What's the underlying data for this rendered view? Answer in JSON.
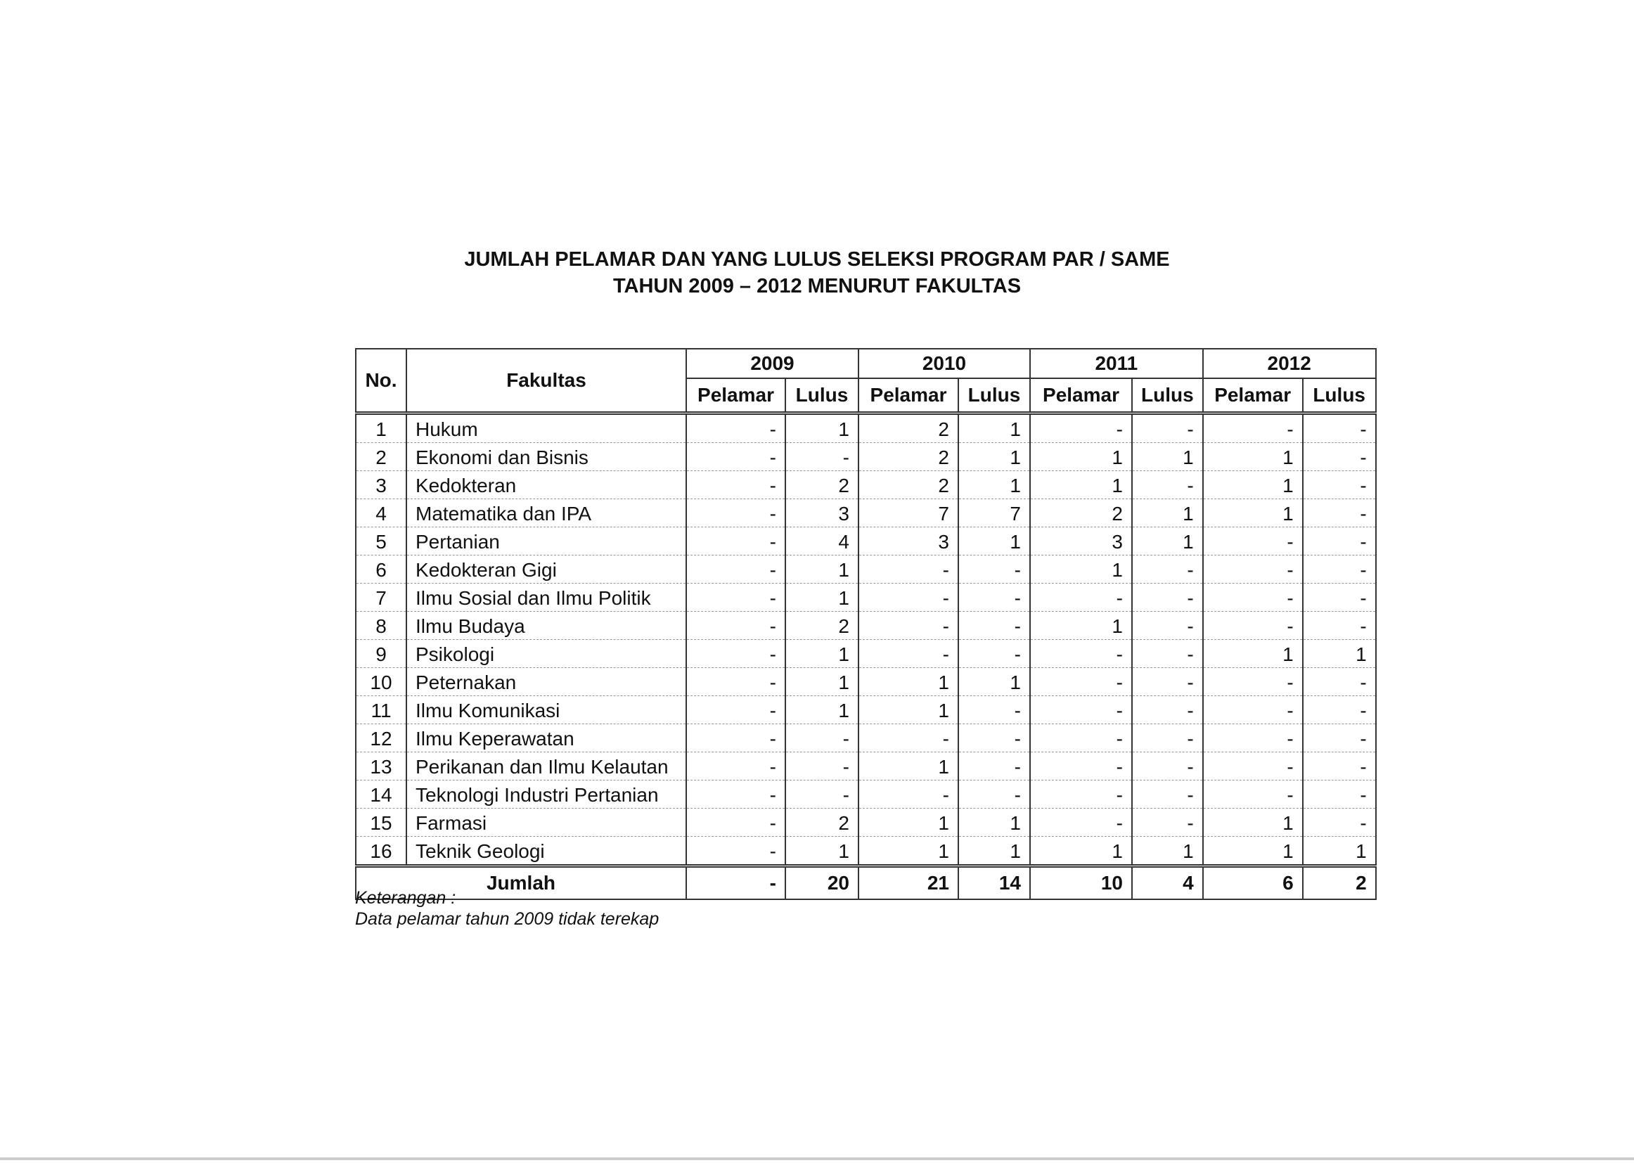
{
  "title": {
    "line1": "JUMLAH PELAMAR DAN YANG LULUS SELEKSI PROGRAM PAR / SAME",
    "line2": "TAHUN 2009 – 2012 MENURUT FAKULTAS"
  },
  "table": {
    "col_no": "No.",
    "col_fakultas": "Fakultas",
    "years": [
      "2009",
      "2010",
      "2011",
      "2012"
    ],
    "sub_pelamar": "Pelamar",
    "sub_lulus": "Lulus",
    "rows": [
      {
        "no": "1",
        "fakultas": "Hukum",
        "values": [
          "-",
          "1",
          "2",
          "1",
          "-",
          "-",
          "-",
          "-"
        ]
      },
      {
        "no": "2",
        "fakultas": "Ekonomi dan Bisnis",
        "values": [
          "-",
          "-",
          "2",
          "1",
          "1",
          "1",
          "1",
          "-"
        ]
      },
      {
        "no": "3",
        "fakultas": "Kedokteran",
        "values": [
          "-",
          "2",
          "2",
          "1",
          "1",
          "-",
          "1",
          "-"
        ]
      },
      {
        "no": "4",
        "fakultas": "Matematika dan IPA",
        "values": [
          "-",
          "3",
          "7",
          "7",
          "2",
          "1",
          "1",
          "-"
        ]
      },
      {
        "no": "5",
        "fakultas": "Pertanian",
        "values": [
          "-",
          "4",
          "3",
          "1",
          "3",
          "1",
          "-",
          "-"
        ]
      },
      {
        "no": "6",
        "fakultas": "Kedokteran Gigi",
        "values": [
          "-",
          "1",
          "-",
          "-",
          "1",
          "-",
          "-",
          "-"
        ]
      },
      {
        "no": "7",
        "fakultas": "Ilmu Sosial dan Ilmu Politik",
        "values": [
          "-",
          "1",
          "-",
          "-",
          "-",
          "-",
          "-",
          "-"
        ]
      },
      {
        "no": "8",
        "fakultas": "Ilmu Budaya",
        "values": [
          "-",
          "2",
          "-",
          "-",
          "1",
          "-",
          "-",
          "-"
        ]
      },
      {
        "no": "9",
        "fakultas": "Psikologi",
        "values": [
          "-",
          "1",
          "-",
          "-",
          "-",
          "-",
          "1",
          "1"
        ]
      },
      {
        "no": "10",
        "fakultas": "Peternakan",
        "values": [
          "-",
          "1",
          "1",
          "1",
          "-",
          "-",
          "-",
          "-"
        ]
      },
      {
        "no": "11",
        "fakultas": "Ilmu Komunikasi",
        "values": [
          "-",
          "1",
          "1",
          "-",
          "-",
          "-",
          "-",
          "-"
        ]
      },
      {
        "no": "12",
        "fakultas": "Ilmu Keperawatan",
        "values": [
          "-",
          "-",
          "-",
          "-",
          "-",
          "-",
          "-",
          "-"
        ]
      },
      {
        "no": "13",
        "fakultas": "Perikanan dan Ilmu Kelautan",
        "values": [
          "-",
          "-",
          "1",
          "-",
          "-",
          "-",
          "-",
          "-"
        ]
      },
      {
        "no": "14",
        "fakultas": "Teknologi Industri Pertanian",
        "values": [
          "-",
          "-",
          "-",
          "-",
          "-",
          "-",
          "-",
          "-"
        ]
      },
      {
        "no": "15",
        "fakultas": "Farmasi",
        "values": [
          "-",
          "2",
          "1",
          "1",
          "-",
          "-",
          "1",
          "-"
        ]
      },
      {
        "no": "16",
        "fakultas": "Teknik Geologi",
        "values": [
          "-",
          "1",
          "1",
          "1",
          "1",
          "1",
          "1",
          "1"
        ]
      }
    ],
    "total_label": "Jumlah",
    "totals": [
      "-",
      "20",
      "21",
      "14",
      "10",
      "4",
      "6",
      "2"
    ]
  },
  "note": {
    "label": "Keterangan :",
    "text": "Data pelamar tahun 2009 tidak terekap"
  }
}
